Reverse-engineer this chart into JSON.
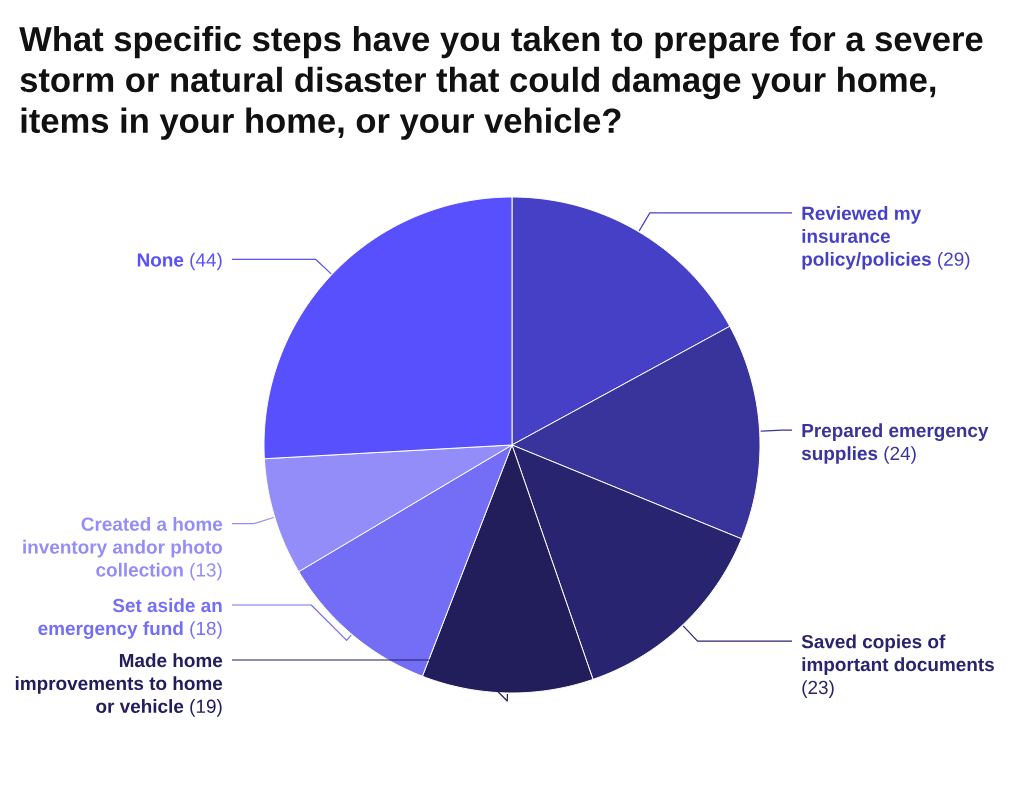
{
  "chart_data": {
    "type": "pie",
    "title": "What specific steps have you taken to prepare for a severe storm or natural disaster that could damage your home, items in your home, or your vehicle?",
    "categories": [
      "Reviewed my insurance policy/policies",
      "Prepared emergency supplies",
      "Saved copies of important documents",
      "Made home improvements to home or vehicle",
      "Set aside an emergency fund",
      "Created a home inventory andor photo collection",
      "None"
    ],
    "values": [
      29,
      24,
      23,
      19,
      18,
      13,
      44
    ],
    "value_labels": [
      "(29)",
      "(24)",
      "(23)",
      "(19)",
      "(18)",
      "(13)",
      "(44)"
    ],
    "colors": [
      "#4640c7",
      "#39339c",
      "#29246f",
      "#221d5b",
      "#746ef6",
      "#938df9",
      "#5850fc"
    ]
  }
}
